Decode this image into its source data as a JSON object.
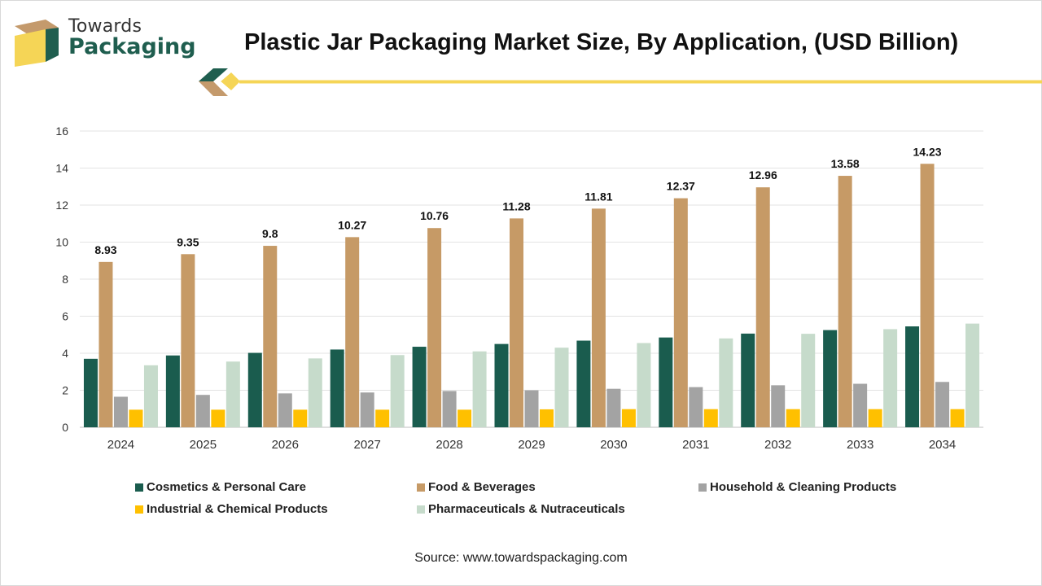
{
  "brand": {
    "line1": "Towards",
    "line2": "Packaging"
  },
  "title": "Plastic Jar Packaging Market Size, By Application, (USD Billion)",
  "source": "Source: www.towardspackaging.com",
  "colors": {
    "brand_green": "#1f5e4f",
    "brand_yellow": "#f5d556",
    "brand_tan": "#c49a6c"
  },
  "chart_data": {
    "type": "bar",
    "title": "Plastic Jar Packaging Market Size, By Application, (USD Billion)",
    "xlabel": "",
    "ylabel": "",
    "ylim": [
      0,
      16
    ],
    "yticks": [
      0,
      2,
      4,
      6,
      8,
      10,
      12,
      14,
      16
    ],
    "grid": true,
    "legend_position": "bottom",
    "categories": [
      "2024",
      "2025",
      "2026",
      "2027",
      "2028",
      "2029",
      "2030",
      "2031",
      "2032",
      "2033",
      "2034"
    ],
    "series": [
      {
        "name": "Cosmetics & Personal Care",
        "color": "#1a5c4e",
        "values": [
          3.7,
          3.88,
          4.02,
          4.2,
          4.35,
          4.5,
          4.68,
          4.85,
          5.06,
          5.25,
          5.45
        ]
      },
      {
        "name": "Food & Beverages",
        "color": "#c69a66",
        "values": [
          8.93,
          9.35,
          9.8,
          10.27,
          10.76,
          11.28,
          11.81,
          12.37,
          12.96,
          13.58,
          14.23
        ],
        "data_labels": [
          "8.93",
          "9.35",
          "9.8",
          "10.27",
          "10.76",
          "11.28",
          "11.81",
          "12.37",
          "12.96",
          "13.58",
          "14.23"
        ]
      },
      {
        "name": "Household & Cleaning Products",
        "color": "#a3a3a3",
        "values": [
          1.65,
          1.75,
          1.83,
          1.88,
          1.96,
          2.0,
          2.08,
          2.17,
          2.27,
          2.35,
          2.45
        ]
      },
      {
        "name": "Industrial & Chemical Products",
        "color": "#ffc000",
        "values": [
          0.95,
          0.95,
          0.95,
          0.95,
          0.95,
          0.97,
          0.98,
          0.98,
          0.98,
          0.98,
          0.98
        ]
      },
      {
        "name": "Pharmaceuticals & Nutraceuticals",
        "color": "#c6dbcb",
        "values": [
          3.35,
          3.55,
          3.72,
          3.9,
          4.1,
          4.3,
          4.55,
          4.8,
          5.05,
          5.3,
          5.6
        ]
      }
    ]
  }
}
